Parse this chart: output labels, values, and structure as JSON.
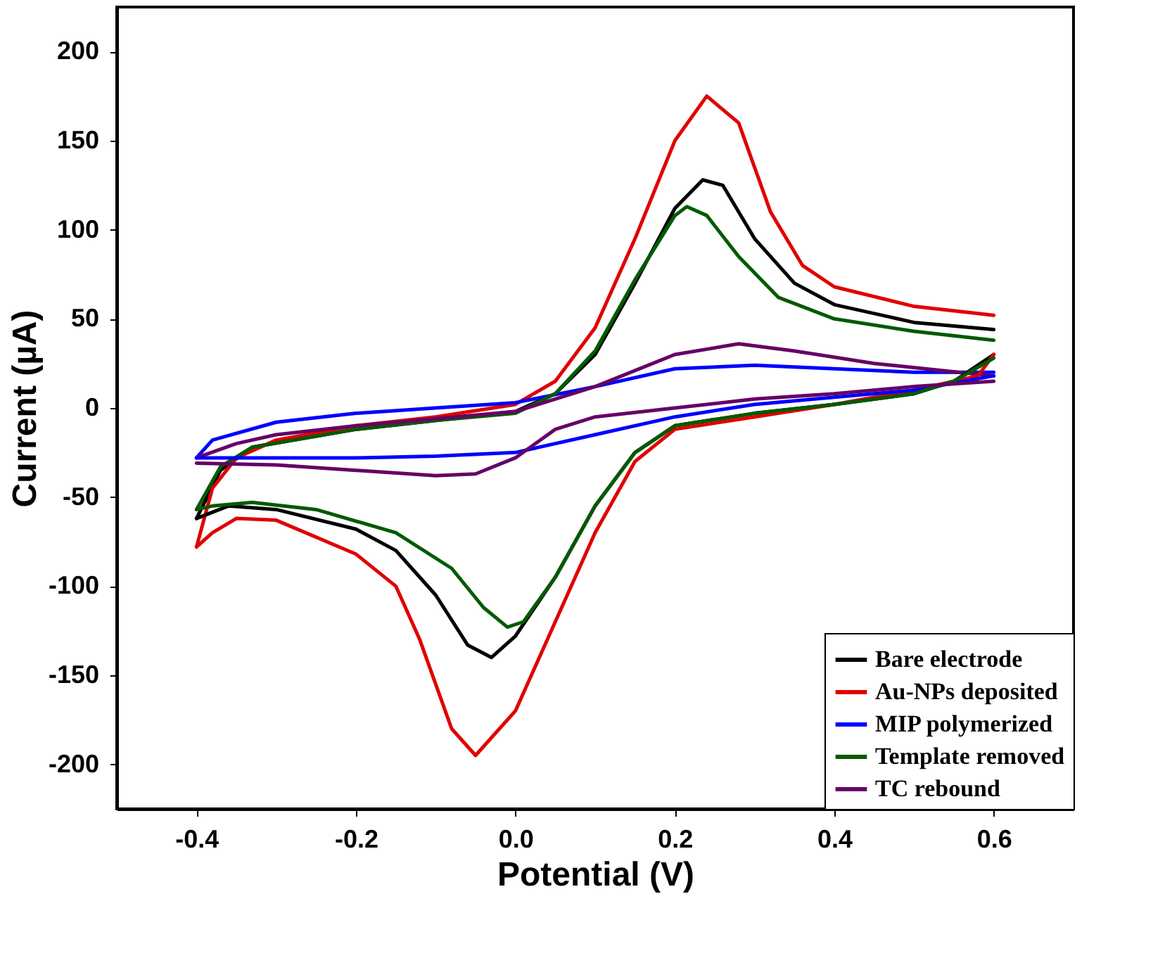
{
  "chart_data": {
    "type": "line",
    "xlabel": "Potential (V)",
    "ylabel": "Current (µA)",
    "xlim": [
      -0.5,
      0.7
    ],
    "ylim": [
      -225,
      225
    ],
    "xticks": [
      -0.4,
      -0.2,
      {
        "value": 0,
        "label": "0.0"
      },
      0.2,
      0.4,
      0.6
    ],
    "yticks": [
      -200,
      -150,
      -100,
      -50,
      0,
      50,
      100,
      150,
      200
    ],
    "grid": false,
    "legend": "bottom right",
    "marker": "none",
    "line_style": "solid",
    "series": [
      {
        "name": "Bare electrode",
        "color": "#000000",
        "x": [
          -0.4,
          -0.37,
          -0.33,
          -0.2,
          -0.1,
          0,
          0.05,
          0.1,
          0.15,
          0.2,
          0.235,
          0.26,
          0.3,
          0.35,
          0.4,
          0.5,
          0.6
        ],
        "values": [
          -62,
          -35,
          -22,
          -12,
          -7,
          -2,
          8,
          30,
          70,
          112,
          128,
          125,
          95,
          70,
          58,
          48,
          44
        ]
      },
      {
        "name": "Au-NPs deposited",
        "color": "#e00000",
        "x": [
          -0.4,
          -0.38,
          -0.35,
          -0.3,
          -0.2,
          -0.1,
          0,
          0.05,
          0.1,
          0.15,
          0.2,
          0.24,
          0.28,
          0.32,
          0.36,
          0.4,
          0.5,
          0.6
        ],
        "values": [
          -78,
          -45,
          -28,
          -18,
          -10,
          -5,
          2,
          15,
          45,
          95,
          150,
          175,
          160,
          110,
          80,
          68,
          57,
          52
        ]
      },
      {
        "name": "MIP polymerized",
        "color": "#0000ff",
        "x": [
          -0.4,
          -0.38,
          -0.3,
          -0.2,
          -0.1,
          0,
          0.1,
          0.2,
          0.3,
          0.4,
          0.5,
          0.6
        ],
        "values": [
          -28,
          -18,
          -8,
          -3,
          0,
          3,
          12,
          22,
          24,
          22,
          20,
          20
        ]
      },
      {
        "name": "Template removed",
        "color": "#005a00",
        "x": [
          -0.4,
          -0.37,
          -0.33,
          -0.2,
          -0.1,
          0,
          0.05,
          0.1,
          0.15,
          0.2,
          0.215,
          0.24,
          0.28,
          0.33,
          0.4,
          0.5,
          0.6
        ],
        "values": [
          -57,
          -33,
          -22,
          -12,
          -7,
          -3,
          8,
          32,
          72,
          108,
          113,
          108,
          85,
          62,
          50,
          43,
          38
        ]
      },
      {
        "name": "TC rebound",
        "color": "#660066",
        "x": [
          -0.4,
          -0.35,
          -0.3,
          -0.2,
          -0.1,
          0,
          0.1,
          0.2,
          0.28,
          0.35,
          0.45,
          0.6
        ],
        "values": [
          -28,
          -20,
          -15,
          -10,
          -6,
          -2,
          12,
          30,
          36,
          32,
          25,
          18
        ]
      },
      {
        "color": "#000000",
        "x": [
          -0.4,
          -0.36,
          -0.3,
          -0.2,
          -0.15,
          -0.1,
          -0.06,
          -0.03,
          0,
          0.05,
          0.1,
          0.15,
          0.2,
          0.3,
          0.4,
          0.5,
          0.55,
          0.6
        ],
        "values": [
          -62,
          -55,
          -57,
          -68,
          -80,
          -105,
          -133,
          -140,
          -128,
          -95,
          -55,
          -25,
          -10,
          -3,
          2,
          8,
          15,
          30
        ]
      },
      {
        "color": "#e00000",
        "x": [
          -0.4,
          -0.38,
          -0.35,
          -0.3,
          -0.2,
          -0.15,
          -0.12,
          -0.08,
          -0.05,
          0,
          0.05,
          0.1,
          0.15,
          0.2,
          0.3,
          0.4,
          0.5,
          0.58,
          0.6
        ],
        "values": [
          -78,
          -70,
          -62,
          -63,
          -82,
          -100,
          -130,
          -180,
          -195,
          -170,
          -120,
          -70,
          -30,
          -12,
          -5,
          2,
          10,
          18,
          30
        ]
      },
      {
        "color": "#0000ff",
        "x": [
          -0.4,
          -0.3,
          -0.2,
          -0.1,
          0,
          0.1,
          0.2,
          0.3,
          0.4,
          0.5,
          0.6
        ],
        "values": [
          -28,
          -28,
          -28,
          -27,
          -25,
          -15,
          -5,
          2,
          6,
          10,
          18
        ]
      },
      {
        "color": "#005a00",
        "x": [
          -0.4,
          -0.38,
          -0.33,
          -0.25,
          -0.15,
          -0.08,
          -0.04,
          -0.01,
          0.01,
          0.05,
          0.1,
          0.15,
          0.2,
          0.3,
          0.4,
          0.5,
          0.55,
          0.6
        ],
        "values": [
          -57,
          -55,
          -53,
          -57,
          -70,
          -90,
          -112,
          -123,
          -120,
          -95,
          -55,
          -25,
          -10,
          -3,
          2,
          8,
          15,
          28
        ]
      },
      {
        "color": "#660066",
        "x": [
          -0.4,
          -0.3,
          -0.2,
          -0.1,
          -0.05,
          0,
          0.05,
          0.1,
          0.2,
          0.3,
          0.4,
          0.5,
          0.6
        ],
        "values": [
          -31,
          -32,
          -35,
          -38,
          -37,
          -28,
          -12,
          -5,
          0,
          5,
          8,
          12,
          15
        ]
      }
    ]
  }
}
